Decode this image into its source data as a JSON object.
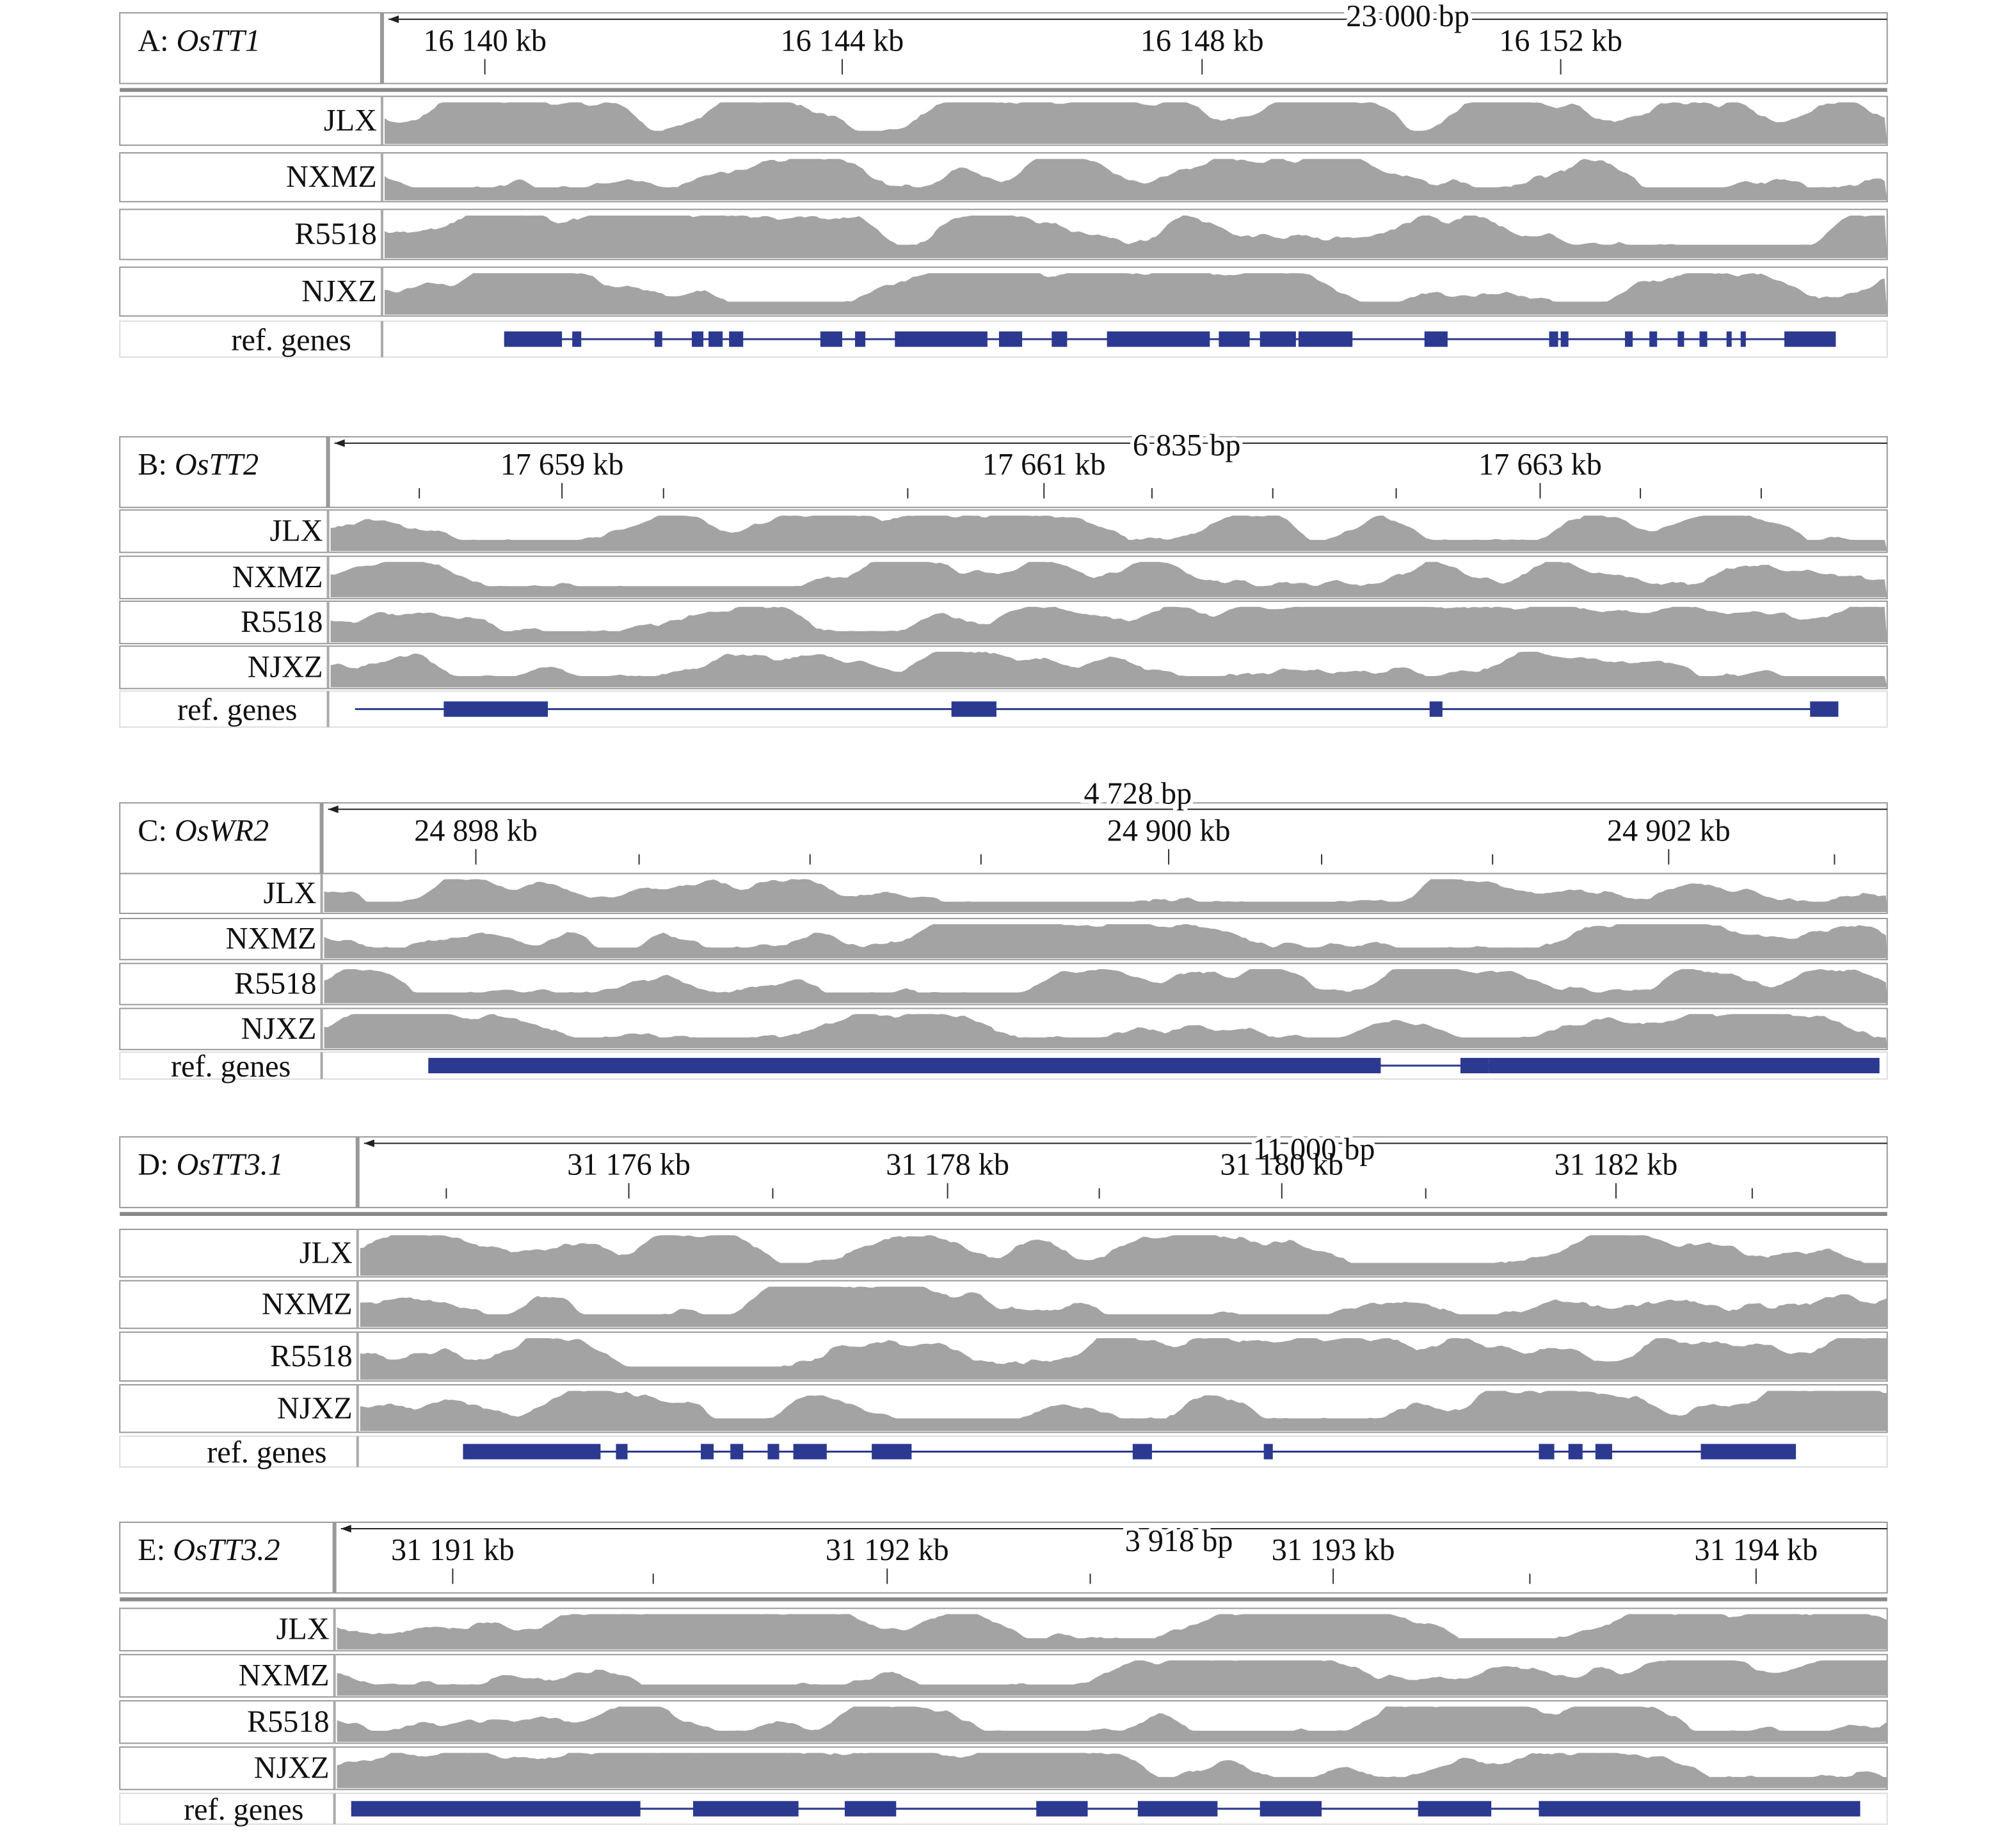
{
  "panels": [
    {
      "prefix": "A:",
      "gene": "OsTT1",
      "span": "23 000 bp",
      "ticks": [
        "16 140 kb",
        "16 144 kb",
        "16 148 kb",
        "16 152 kb"
      ],
      "tracks": [
        "JLX",
        "NXMZ",
        "R5518",
        "NJXZ"
      ],
      "ref": "ref. genes"
    },
    {
      "prefix": "B:",
      "gene": "OsTT2",
      "span": "6 835 bp",
      "ticks": [
        "17 659 kb",
        "17 661 kb",
        "17 663 kb"
      ],
      "tracks": [
        "JLX",
        "NXMZ",
        "R5518",
        "NJXZ"
      ],
      "ref": "ref. genes"
    },
    {
      "prefix": "C:",
      "gene": "OsWR2",
      "span": "4 728 bp",
      "ticks": [
        "24 898 kb",
        "24 900 kb",
        "24 902 kb"
      ],
      "tracks": [
        "JLX",
        "NXMZ",
        "R5518",
        "NJXZ"
      ],
      "ref": "ref. genes"
    },
    {
      "prefix": "D:",
      "gene": "OsTT3.1",
      "span": "11 000 bp",
      "ticks": [
        "31 176 kb",
        "31 178 kb",
        "31 180 kb",
        "31 182 kb"
      ],
      "tracks": [
        "JLX",
        "NXMZ",
        "R5518",
        "NJXZ"
      ],
      "ref": "ref. genes"
    },
    {
      "prefix": "E:",
      "gene": "OsTT3.2",
      "span": "3 918 bp",
      "ticks": [
        "31 191 kb",
        "31 192 kb",
        "31 193 kb",
        "31 194 kb"
      ],
      "tracks": [
        "JLX",
        "NXMZ",
        "R5518",
        "NJXZ"
      ],
      "ref": "ref. genes"
    }
  ]
}
